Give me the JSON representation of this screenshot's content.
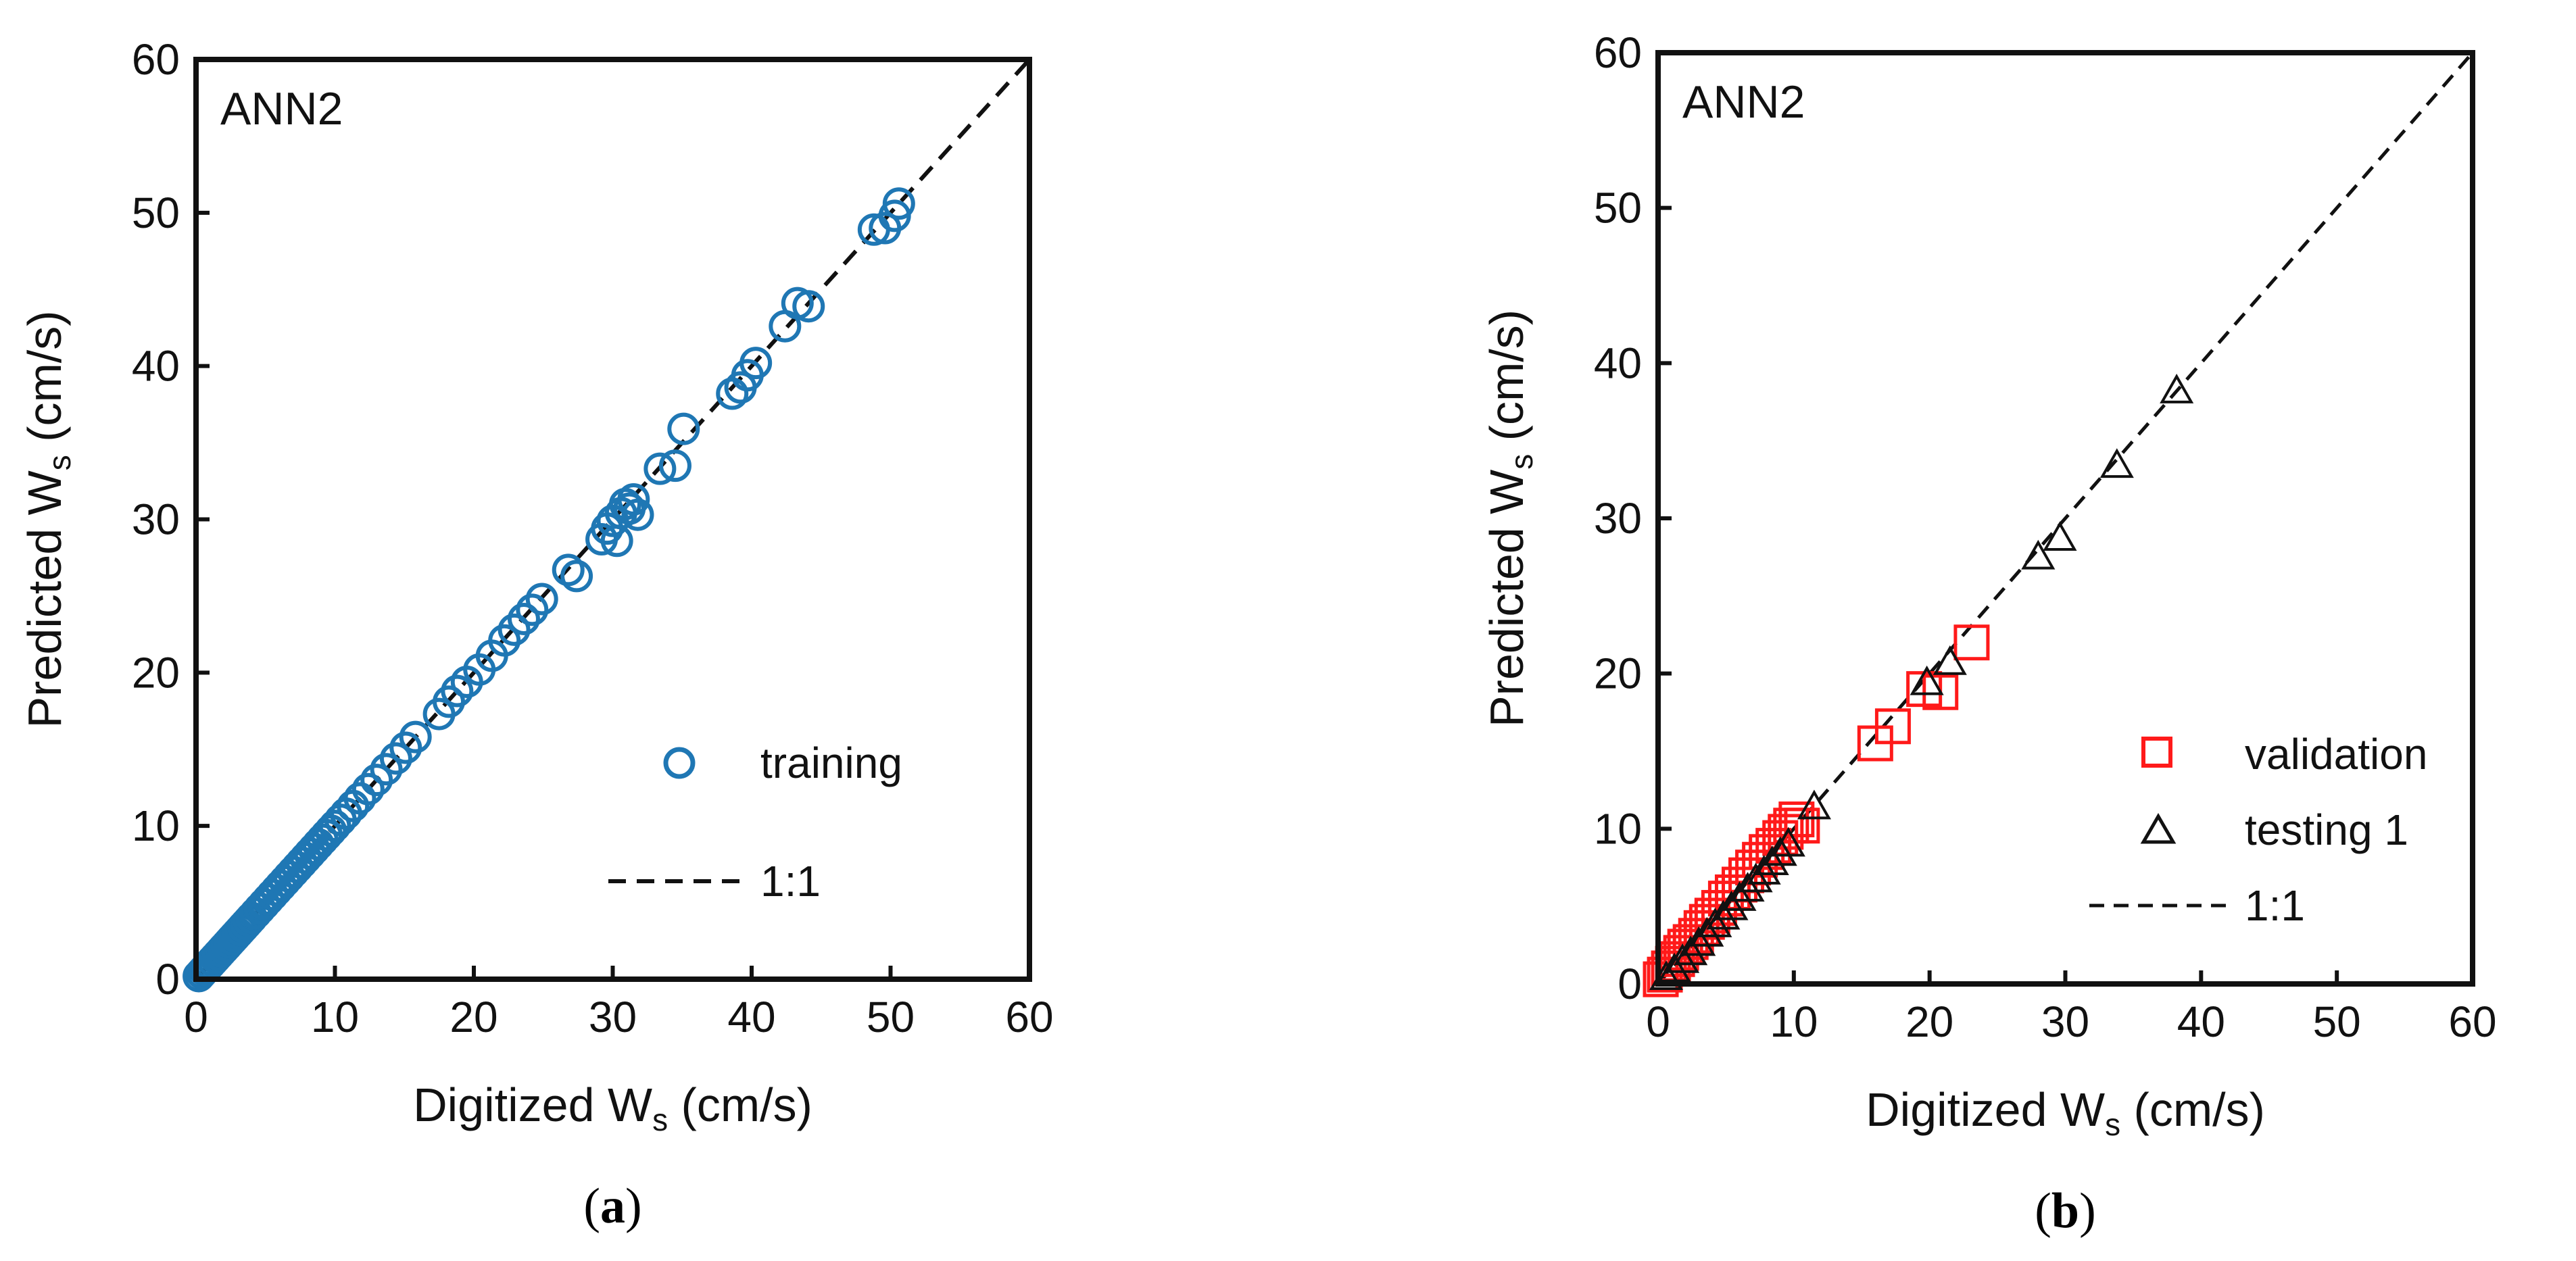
{
  "colors": {
    "training": "#1f77b4",
    "validation": "#ff1a1a",
    "testing": "#111111",
    "axis": "#111111"
  },
  "chart_data": [
    {
      "type": "scatter",
      "caption": "a",
      "panel_label": "ANN2",
      "xlabel": {
        "main": "Digitized W",
        "sub": "s",
        "unit": " (cm/s)"
      },
      "ylabel": {
        "main": "Predicted W",
        "sub": "s",
        "unit": " (cm/s)"
      },
      "xlim": [
        0,
        60
      ],
      "ylim": [
        0,
        60
      ],
      "xticks": [
        "0",
        "10",
        "20",
        "30",
        "40",
        "50",
        "60"
      ],
      "yticks": [
        "0",
        "10",
        "20",
        "30",
        "40",
        "50",
        "60"
      ],
      "grid": false,
      "legend_position": "lower-right",
      "series": [
        {
          "name": "training",
          "marker": "circle",
          "x": [
            0.2,
            0.4,
            0.6,
            0.8,
            1.0,
            1.2,
            1.4,
            1.6,
            1.8,
            2.0,
            2.2,
            2.4,
            2.6,
            2.8,
            3.0,
            3.2,
            3.4,
            3.6,
            3.8,
            4.0,
            4.3,
            4.6,
            4.9,
            5.2,
            5.5,
            5.8,
            6.1,
            6.4,
            6.7,
            7.0,
            7.3,
            7.6,
            7.9,
            8.2,
            8.5,
            8.8,
            9.1,
            9.4,
            9.7,
            10.0,
            10.4,
            10.8,
            11.3,
            11.8,
            12.4,
            13.0,
            13.7,
            14.4,
            15.1,
            15.8,
            17.5,
            18.2,
            18.8,
            19.5,
            20.4,
            21.3,
            22.2,
            22.9,
            23.6,
            24.2,
            24.9,
            26.8,
            27.4,
            29.2,
            29.6,
            30.0,
            30.3,
            30.6,
            30.9,
            31.2,
            31.5,
            31.8,
            33.4,
            34.5,
            35.1,
            38.6,
            39.2,
            39.7,
            40.3,
            42.4,
            43.3,
            44.1,
            48.8,
            49.6,
            50.3,
            50.6
          ],
          "y": [
            0.2,
            0.4,
            0.6,
            0.8,
            1.0,
            1.2,
            1.4,
            1.6,
            1.8,
            2.0,
            2.2,
            2.4,
            2.6,
            2.8,
            3.0,
            3.2,
            3.4,
            3.6,
            3.8,
            4.0,
            4.3,
            4.6,
            4.9,
            5.2,
            5.5,
            5.8,
            6.1,
            6.4,
            6.7,
            7.0,
            7.3,
            7.6,
            7.9,
            8.2,
            8.5,
            8.8,
            9.1,
            9.4,
            9.7,
            10.0,
            10.4,
            10.8,
            11.3,
            11.8,
            12.4,
            13.0,
            13.7,
            14.4,
            15.1,
            15.8,
            17.3,
            18.1,
            18.8,
            19.4,
            20.2,
            21.1,
            22.1,
            22.8,
            23.5,
            24.1,
            24.8,
            26.7,
            26.3,
            28.7,
            29.4,
            29.9,
            28.6,
            30.4,
            31.0,
            30.7,
            31.3,
            30.3,
            33.3,
            33.5,
            35.9,
            38.2,
            38.6,
            39.4,
            40.2,
            42.6,
            44.1,
            43.9,
            48.9,
            49.0,
            49.8,
            50.6
          ]
        }
      ],
      "reference_line": {
        "name": "1:1",
        "style": "dashed"
      }
    },
    {
      "type": "scatter",
      "caption": "b",
      "panel_label": "ANN2",
      "xlabel": {
        "main": "Digitized W",
        "sub": "s",
        "unit": " (cm/s)"
      },
      "ylabel": {
        "main": "Predicted W",
        "sub": "s",
        "unit": " (cm/s)"
      },
      "xlim": [
        0,
        60
      ],
      "ylim": [
        0,
        60
      ],
      "xticks": [
        "0",
        "10",
        "20",
        "30",
        "40",
        "50",
        "60"
      ],
      "yticks": [
        "0",
        "10",
        "20",
        "30",
        "40",
        "50",
        "60"
      ],
      "grid": false,
      "legend_position": "lower-right",
      "series": [
        {
          "name": "validation",
          "marker": "square",
          "x": [
            0.2,
            0.5,
            0.8,
            1.1,
            1.4,
            1.7,
            2.0,
            2.4,
            2.8,
            3.2,
            3.6,
            4.0,
            4.5,
            5.0,
            5.5,
            6.0,
            6.5,
            7.0,
            7.5,
            8.0,
            8.5,
            9.0,
            9.4,
            9.8,
            10.2,
            10.6,
            16.0,
            17.3,
            19.6,
            20.8,
            23.1
          ],
          "y": [
            0.3,
            0.6,
            1.0,
            1.3,
            1.6,
            2.0,
            2.4,
            2.7,
            3.1,
            3.6,
            4.0,
            4.4,
            4.9,
            5.5,
            5.9,
            6.4,
            7.0,
            7.5,
            8.0,
            8.5,
            8.9,
            9.4,
            9.8,
            10.2,
            10.6,
            10.2,
            15.5,
            16.6,
            19.0,
            18.8,
            22.0
          ]
        },
        {
          "name": "testing 1",
          "marker": "triangle",
          "x": [
            0.6,
            1.2,
            1.8,
            2.4,
            3.0,
            3.6,
            4.2,
            4.8,
            5.4,
            6.0,
            6.6,
            7.2,
            7.8,
            8.4,
            9.0,
            9.6,
            11.5,
            19.8,
            21.5,
            28.0,
            29.6,
            33.8,
            38.2
          ],
          "y": [
            0.4,
            0.9,
            1.5,
            2.0,
            2.6,
            3.2,
            3.8,
            4.3,
            4.9,
            5.5,
            6.1,
            6.7,
            7.2,
            7.8,
            8.4,
            9.0,
            11.4,
            19.4,
            20.7,
            27.5,
            28.7,
            33.4,
            38.2
          ]
        }
      ],
      "reference_line": {
        "name": "1:1",
        "style": "dashed"
      }
    }
  ]
}
